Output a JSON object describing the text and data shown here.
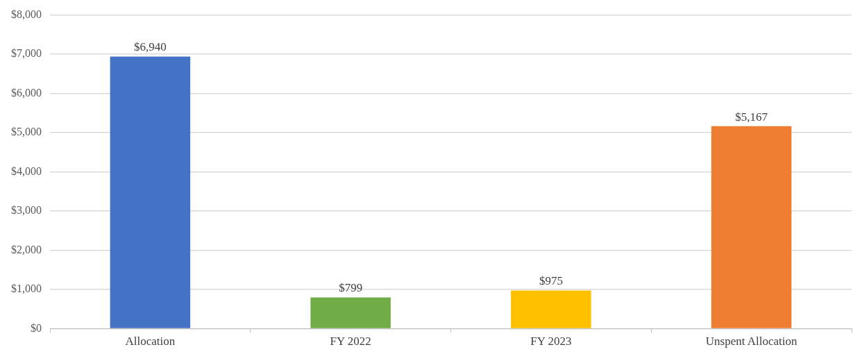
{
  "chart_data": {
    "type": "bar",
    "categories": [
      "Allocation",
      "FY 2022",
      "FY 2023",
      "Unspent Allocation"
    ],
    "values": [
      6940,
      799,
      975,
      5167
    ],
    "colors": [
      "#4472c4",
      "#70ad47",
      "#ffc000",
      "#ed7d31"
    ],
    "value_labels": [
      "$6,940",
      "$799",
      "$975",
      "$5,167"
    ],
    "ylim": [
      0,
      8000
    ],
    "yticks": [
      {
        "value": 0,
        "label": "$0"
      },
      {
        "value": 1000,
        "label": "$1,000"
      },
      {
        "value": 2000,
        "label": "$2,000"
      },
      {
        "value": 3000,
        "label": "$3,000"
      },
      {
        "value": 4000,
        "label": "$4,000"
      },
      {
        "value": 5000,
        "label": "$5,000"
      },
      {
        "value": 6000,
        "label": "$6,000"
      },
      {
        "value": 7000,
        "label": "$7,000"
      },
      {
        "value": 8000,
        "label": "$8,000"
      }
    ],
    "grid": "y",
    "legend": false
  }
}
